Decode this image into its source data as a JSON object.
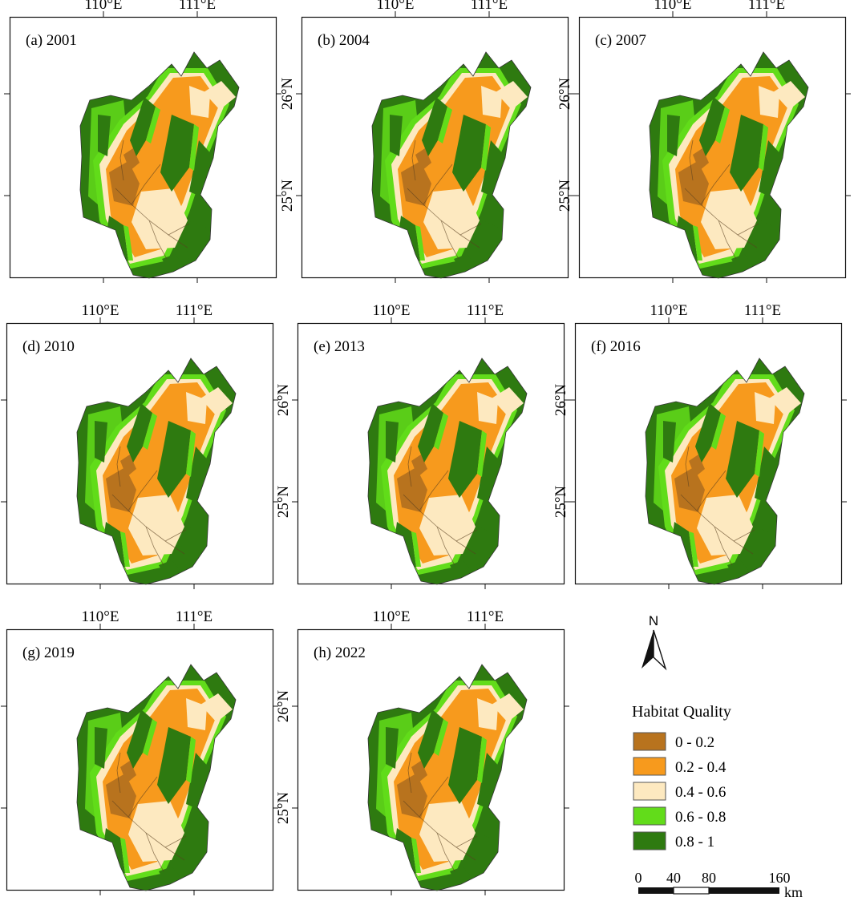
{
  "panels": [
    {
      "label": "(a) 2001"
    },
    {
      "label": "(b) 2004"
    },
    {
      "label": "(c) 2007"
    },
    {
      "label": "(d) 2010"
    },
    {
      "label": "(e) 2013"
    },
    {
      "label": "(f) 2016"
    },
    {
      "label": "(g) 2019"
    },
    {
      "label": "(h) 2022"
    }
  ],
  "axes": {
    "lon_labels": [
      "110°E",
      "111°E"
    ],
    "lat_labels": [
      "26°N",
      "25°N"
    ]
  },
  "north_arrow": {
    "label": "N",
    "icon": "north-arrow-icon"
  },
  "legend": {
    "title": "Habitat Quality",
    "classes": [
      {
        "label": "0 - 0.2",
        "color": "#b8731e"
      },
      {
        "label": "0.2 - 0.4",
        "color": "#f79a1d"
      },
      {
        "label": "0.4 - 0.6",
        "color": "#fde9c0"
      },
      {
        "label": "0.6 - 0.8",
        "color": "#62dc1a"
      },
      {
        "label": "0.8 - 1",
        "color": "#2e7a10"
      }
    ]
  },
  "scale_bar": {
    "ticks": [
      "0",
      "40",
      "80",
      "160"
    ],
    "unit": "km"
  }
}
